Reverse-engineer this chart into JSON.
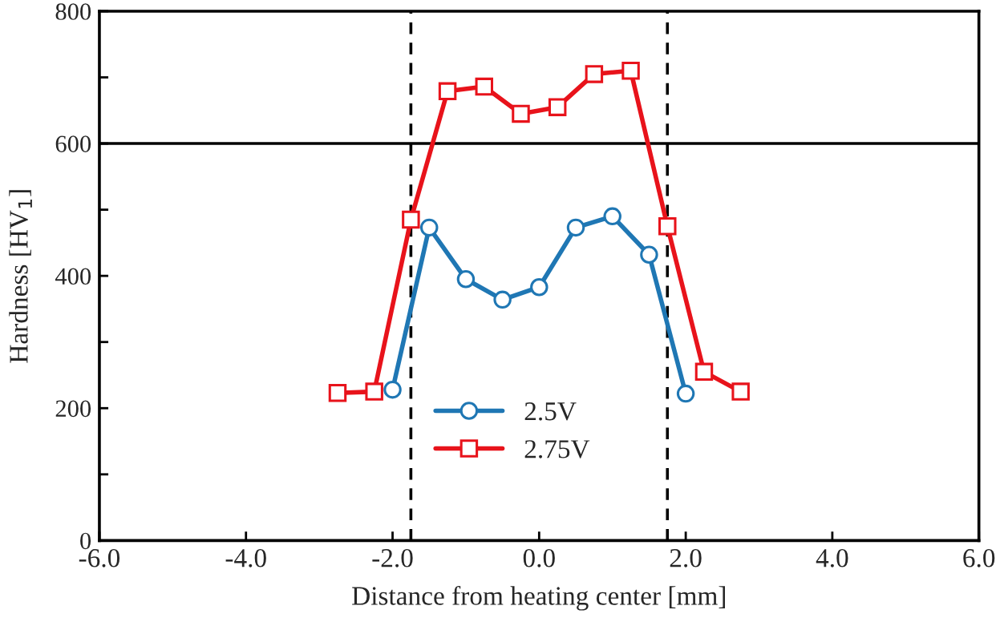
{
  "chart_data": {
    "type": "line",
    "xlabel": "Distance from heating center [mm]",
    "ylabel": "Hardness [HV$_{1}$]",
    "xlim": [
      -6,
      6
    ],
    "xticks": [
      {
        "value": -6,
        "label": "-6.0"
      },
      {
        "value": -4,
        "label": "-4.0"
      },
      {
        "value": -2,
        "label": "-2.0"
      },
      {
        "value": 0,
        "label": "0.0"
      },
      {
        "value": 2,
        "label": "2.0"
      },
      {
        "value": 4,
        "label": "4.0"
      },
      {
        "value": 6,
        "label": "6.0"
      }
    ],
    "ylim": [
      0,
      800
    ],
    "yticks": [
      0,
      {
        "value": 100,
        "label": null
      },
      200,
      {
        "value": 300,
        "label": null
      },
      400,
      {
        "value": 500,
        "label": null
      },
      600,
      {
        "value": 700,
        "label": null
      },
      800
    ],
    "grid": false,
    "legend": "bottom",
    "line_style": "solid",
    "series": [
      {
        "name": "2.5V",
        "color": "#1f77b4",
        "marker": "circle",
        "x": [
          -2.0,
          -1.5,
          -1.0,
          -0.5,
          0.0,
          0.5,
          1.0,
          1.5,
          2.0
        ],
        "values": [
          228,
          473,
          395,
          364,
          383,
          473,
          490,
          432,
          222
        ]
      },
      {
        "name": "2.75V",
        "color": "#e8131b",
        "marker": "square",
        "x": [
          -2.75,
          -2.25,
          -1.75,
          -1.25,
          -0.75,
          -0.25,
          0.25,
          0.75,
          1.25,
          1.75,
          2.25,
          2.75
        ],
        "values": [
          223,
          225,
          485,
          679,
          686,
          645,
          655,
          705,
          710,
          475,
          255,
          225
        ]
      }
    ],
    "ref_lines": [
      {
        "axis": "y",
        "value": 600,
        "color": "#000000",
        "line_style": "solid"
      },
      {
        "axis": "x",
        "value": -1.75,
        "color": "#000000",
        "line_style": "dashed"
      },
      {
        "axis": "x",
        "value": 1.75,
        "color": "#000000",
        "line_style": "dashed"
      }
    ]
  }
}
